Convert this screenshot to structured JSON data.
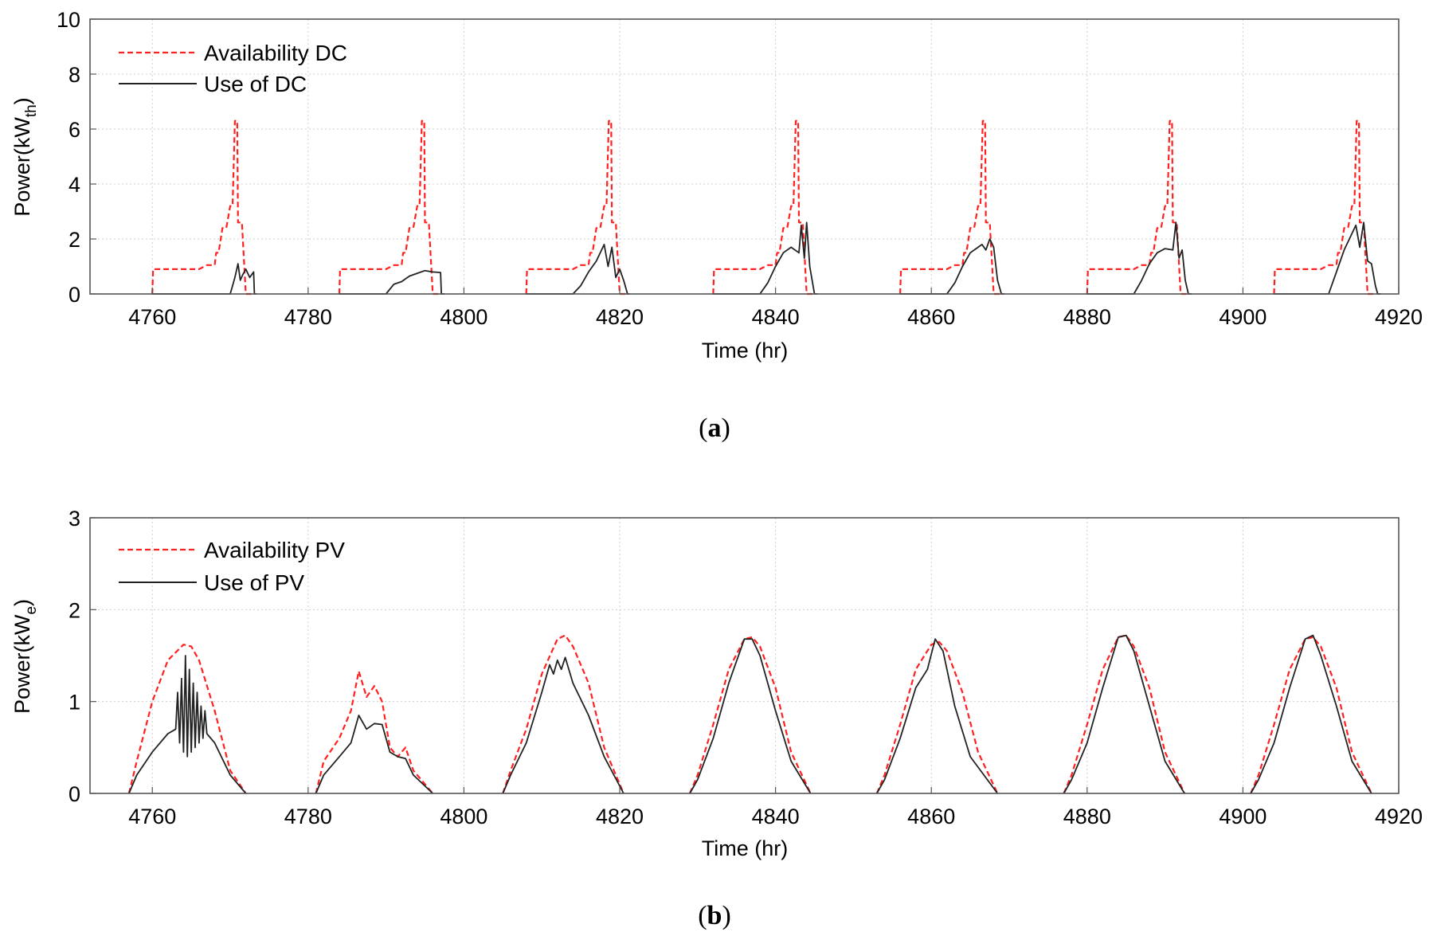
{
  "chart_data": [
    {
      "type": "line",
      "panel_label": "(a)",
      "panel_letter": "a",
      "xlabel": "Time (hr)",
      "ylabel_main": "Power(kW",
      "ylabel_sub": "th",
      "ylabel_close": ")",
      "xlim": [
        4752,
        4920
      ],
      "ylim": [
        0,
        10
      ],
      "xticks": [
        4760,
        4780,
        4800,
        4820,
        4840,
        4860,
        4880,
        4900,
        4920
      ],
      "yticks": [
        0,
        2,
        4,
        6,
        8,
        10
      ],
      "grid": true,
      "legend_position": "top-left",
      "series": [
        {
          "name": "Availability DC",
          "style": "dashed",
          "color": "#ff2020",
          "day_starts": [
            4760,
            4784,
            4808,
            4832,
            4856,
            4880,
            4904
          ],
          "day_profile_offsets": [
            0,
            0.1,
            0.3,
            6,
            7,
            8,
            8.2,
            8.5,
            9,
            9.5,
            10,
            10.3,
            10.6,
            10.9,
            11,
            11.5,
            12,
            12.3,
            13
          ],
          "day_profile_values": [
            0,
            0.9,
            0.9,
            0.9,
            1.05,
            1.05,
            1.5,
            1.5,
            2.4,
            2.4,
            3.2,
            3.2,
            6.3,
            6.3,
            2.6,
            2.6,
            0,
            0,
            0
          ]
        },
        {
          "name": "Use of DC",
          "style": "solid",
          "color": "#222222",
          "days": [
            {
              "x": [
                4760,
                4770,
                4770.3,
                4770.6,
                4771,
                4771.3,
                4771.6,
                4772,
                4772.5,
                4773,
                4773.1,
                4773.4
              ],
              "y": [
                0,
                0,
                0.3,
                0.6,
                1.1,
                0.5,
                0.7,
                0.9,
                0.6,
                0.8,
                0,
                0
              ]
            },
            {
              "x": [
                4784,
                4790,
                4791,
                4792,
                4793,
                4794,
                4795,
                4796,
                4797,
                4797.1,
                4797.5
              ],
              "y": [
                0,
                0,
                0.35,
                0.45,
                0.65,
                0.75,
                0.85,
                0.8,
                0.78,
                0,
                0
              ]
            },
            {
              "x": [
                4808,
                4814,
                4815,
                4816,
                4817,
                4817.5,
                4818,
                4818.5,
                4819,
                4819.5,
                4820,
                4820.5,
                4821,
                4821.3
              ],
              "y": [
                0,
                0,
                0.3,
                0.8,
                1.2,
                1.5,
                1.8,
                1.0,
                1.7,
                0.6,
                0.9,
                0.5,
                0,
                0
              ]
            },
            {
              "x": [
                4832,
                4838,
                4839,
                4840,
                4841,
                4842,
                4843,
                4843.3,
                4843.7,
                4844,
                4844.4,
                4845,
                4845.4
              ],
              "y": [
                0,
                0,
                0.4,
                1.0,
                1.5,
                1.7,
                1.5,
                2.5,
                1.3,
                2.6,
                1.0,
                0,
                0
              ]
            },
            {
              "x": [
                4856,
                4862,
                4863,
                4864,
                4865,
                4866,
                4866.5,
                4867,
                4867.5,
                4868,
                4868.5,
                4869,
                4869.4
              ],
              "y": [
                0,
                0,
                0.4,
                1.0,
                1.5,
                1.7,
                1.8,
                1.6,
                2.0,
                1.7,
                0.5,
                0,
                0
              ]
            },
            {
              "x": [
                4880,
                4886,
                4887,
                4888,
                4889,
                4890,
                4891,
                4891.4,
                4891.8,
                4892.2,
                4892.6,
                4893,
                4893.4
              ],
              "y": [
                0,
                0,
                0.5,
                1.1,
                1.5,
                1.65,
                1.6,
                2.6,
                1.3,
                1.6,
                0.5,
                0,
                0
              ]
            },
            {
              "x": [
                4904,
                4911,
                4912,
                4913,
                4914,
                4914.5,
                4915,
                4915.5,
                4916,
                4916.5,
                4917,
                4917.3,
                4917.7
              ],
              "y": [
                0,
                0,
                0.8,
                1.6,
                2.2,
                2.5,
                1.7,
                2.6,
                1.2,
                1.1,
                0.3,
                0,
                0
              ]
            }
          ]
        }
      ]
    },
    {
      "type": "line",
      "panel_label": "(b)",
      "panel_letter": "b",
      "xlabel": "Time (hr)",
      "ylabel_main": "Power(kW",
      "ylabel_sub": "e",
      "ylabel_close": ")",
      "xlim": [
        4752,
        4920
      ],
      "ylim": [
        0,
        3
      ],
      "xticks": [
        4760,
        4780,
        4800,
        4820,
        4840,
        4860,
        4880,
        4900,
        4920
      ],
      "yticks": [
        0,
        1,
        2,
        3
      ],
      "grid": true,
      "legend_position": "top-left",
      "series": [
        {
          "name": "Availability PV",
          "style": "dashed",
          "color": "#ff2020",
          "days": [
            {
              "x": [
                4757,
                4758,
                4760,
                4762,
                4764,
                4765,
                4766,
                4768,
                4770,
                4772
              ],
              "y": [
                0,
                0.35,
                1.0,
                1.45,
                1.62,
                1.6,
                1.45,
                0.9,
                0.25,
                0
              ]
            },
            {
              "x": [
                4781,
                4782,
                4784,
                4785.5,
                4786.5,
                4787.5,
                4788.5,
                4789.5,
                4790.5,
                4791.5,
                4792.5,
                4793.5,
                4796
              ],
              "y": [
                0,
                0.35,
                0.6,
                0.9,
                1.33,
                1.05,
                1.17,
                1.0,
                0.5,
                0.4,
                0.5,
                0.25,
                0
              ]
            },
            {
              "x": [
                4805,
                4806,
                4808,
                4810,
                4812,
                4813,
                4814,
                4816,
                4818,
                4820.5
              ],
              "y": [
                0,
                0.25,
                0.7,
                1.3,
                1.68,
                1.72,
                1.6,
                1.2,
                0.5,
                0
              ]
            },
            {
              "x": [
                4829,
                4830,
                4832,
                4834,
                4836,
                4837,
                4838,
                4840,
                4842,
                4844.5
              ],
              "y": [
                0,
                0.2,
                0.75,
                1.35,
                1.68,
                1.7,
                1.6,
                1.15,
                0.45,
                0
              ]
            },
            {
              "x": [
                4853,
                4854,
                4856,
                4858,
                4860,
                4861,
                4862,
                4864,
                4866,
                4868.5
              ],
              "y": [
                0,
                0.2,
                0.75,
                1.35,
                1.62,
                1.65,
                1.55,
                1.1,
                0.45,
                0
              ]
            },
            {
              "x": [
                4877,
                4878,
                4880,
                4882,
                4884,
                4885,
                4886,
                4888,
                4890,
                4892.5
              ],
              "y": [
                0,
                0.2,
                0.75,
                1.35,
                1.7,
                1.72,
                1.6,
                1.15,
                0.45,
                0
              ]
            },
            {
              "x": [
                4901,
                4902,
                4904,
                4906,
                4908,
                4909,
                4910,
                4912,
                4914,
                4916.5
              ],
              "y": [
                0,
                0.2,
                0.75,
                1.35,
                1.68,
                1.7,
                1.6,
                1.15,
                0.45,
                0
              ]
            }
          ]
        },
        {
          "name": "Use of PV",
          "style": "solid",
          "color": "#222222",
          "days": [
            {
              "x": [
                4757,
                4758,
                4760,
                4762,
                4763,
                4763.25,
                4763.5,
                4763.75,
                4764,
                4764.25,
                4764.5,
                4764.75,
                4765,
                4765.25,
                4765.5,
                4765.75,
                4766,
                4766.25,
                4766.5,
                4766.75,
                4767,
                4768,
                4770,
                4772
              ],
              "y": [
                0,
                0.2,
                0.45,
                0.65,
                0.7,
                1.1,
                0.55,
                1.25,
                0.45,
                1.5,
                0.4,
                1.35,
                0.45,
                1.2,
                0.5,
                1.1,
                0.55,
                0.95,
                0.6,
                0.9,
                0.65,
                0.55,
                0.2,
                0
              ]
            },
            {
              "x": [
                4781,
                4782,
                4784,
                4785.5,
                4786.5,
                4787.5,
                4788.5,
                4789.5,
                4790.5,
                4791.5,
                4792.5,
                4793.5,
                4796
              ],
              "y": [
                0,
                0.2,
                0.4,
                0.55,
                0.85,
                0.7,
                0.76,
                0.75,
                0.45,
                0.4,
                0.38,
                0.2,
                0
              ]
            },
            {
              "x": [
                4805,
                4806,
                4808,
                4810,
                4811,
                4811.5,
                4812,
                4812.5,
                4813,
                4814,
                4816,
                4818,
                4820.5
              ],
              "y": [
                0,
                0.2,
                0.55,
                1.1,
                1.4,
                1.3,
                1.45,
                1.35,
                1.48,
                1.2,
                0.85,
                0.4,
                0
              ]
            },
            {
              "x": [
                4829,
                4830,
                4832,
                4834,
                4836,
                4837,
                4838,
                4840,
                4842,
                4844.5
              ],
              "y": [
                0,
                0.15,
                0.6,
                1.2,
                1.68,
                1.68,
                1.5,
                0.9,
                0.35,
                0
              ]
            },
            {
              "x": [
                4853,
                4854,
                4856,
                4858,
                4859.5,
                4860.5,
                4861.5,
                4863,
                4865,
                4868.5
              ],
              "y": [
                0,
                0.15,
                0.6,
                1.15,
                1.35,
                1.68,
                1.55,
                0.95,
                0.4,
                0
              ]
            },
            {
              "x": [
                4877,
                4878,
                4880,
                4882,
                4884,
                4885,
                4886,
                4888,
                4890,
                4892.5
              ],
              "y": [
                0,
                0.15,
                0.55,
                1.15,
                1.7,
                1.72,
                1.55,
                0.95,
                0.35,
                0
              ]
            },
            {
              "x": [
                4901,
                4902,
                4904,
                4906,
                4908,
                4909,
                4910,
                4912,
                4914,
                4916.5
              ],
              "y": [
                0,
                0.15,
                0.55,
                1.15,
                1.68,
                1.72,
                1.5,
                0.95,
                0.35,
                0
              ]
            }
          ]
        }
      ]
    }
  ]
}
